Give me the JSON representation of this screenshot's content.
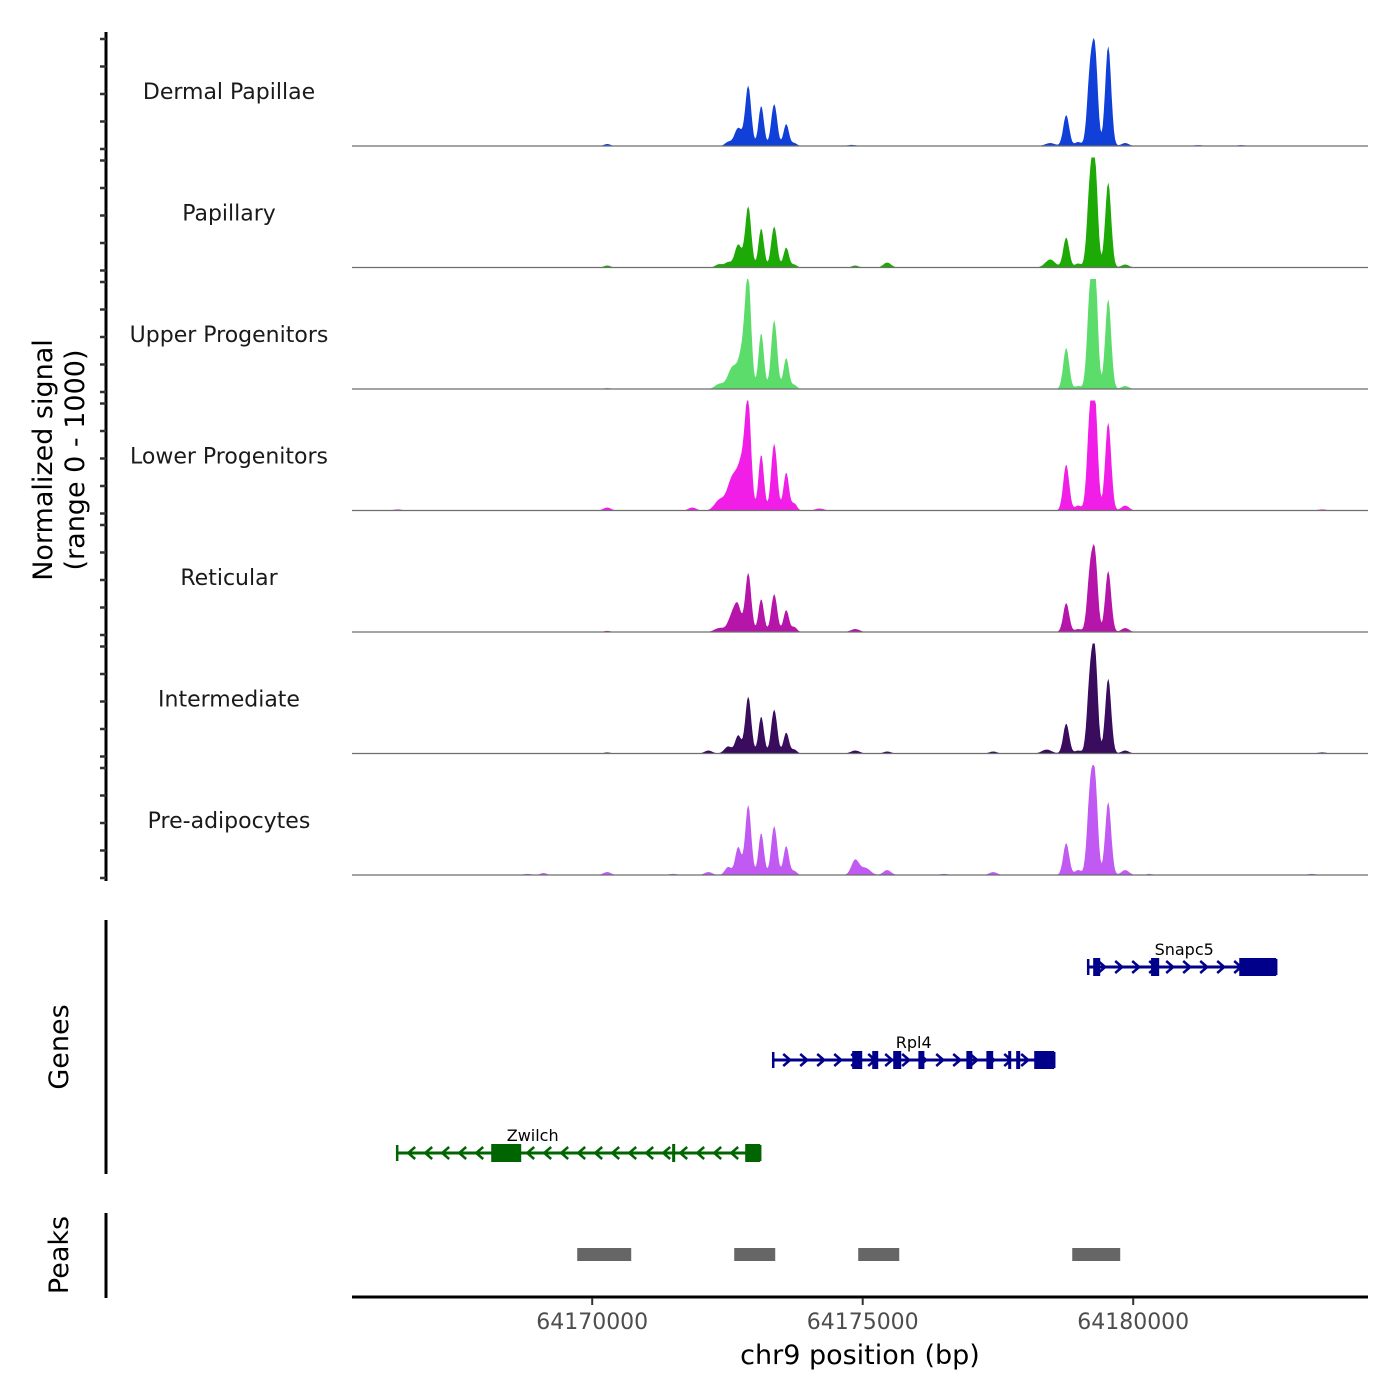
{
  "chart_data": {
    "type": "area",
    "title": "",
    "xlabel": "chr9 position (bp)",
    "ylabel": "Normalized signal\n(range 0 - 1000)",
    "ylabel_lines": [
      "Normalized signal",
      "(range 0 - 1000)"
    ],
    "xlim": [
      64165560,
      64184340
    ],
    "ylim": [
      0,
      1000
    ],
    "x_ticks": [
      64170000,
      64175000,
      64180000
    ],
    "x_tick_labels": [
      "64170000",
      "64175000",
      "64180000"
    ],
    "y_ticks_per_track": [
      0,
      250,
      500,
      750,
      1000
    ],
    "grid": false,
    "legend": "none",
    "tracks": [
      {
        "name": "Dermal Papillae",
        "color": "#1140D8",
        "peaks": [
          [
            64170277,
            18,
            60
          ],
          [
            64172514,
            36,
            60
          ],
          [
            64172699,
            164,
            70
          ],
          [
            64172884,
            545,
            55
          ],
          [
            64173124,
            364,
            50
          ],
          [
            64173364,
            382,
            55
          ],
          [
            64173586,
            200,
            50
          ],
          [
            64173734,
            27,
            50
          ],
          [
            64174800,
            10,
            80
          ],
          [
            64178466,
            27,
            90
          ],
          [
            64178762,
            282,
            55
          ],
          [
            64178983,
            36,
            60
          ],
          [
            64179205,
            664,
            55
          ],
          [
            64179298,
            764,
            50
          ],
          [
            64179538,
            909,
            55
          ],
          [
            64179852,
            27,
            70
          ],
          [
            64181200,
            8,
            80
          ],
          [
            64182000,
            8,
            80
          ]
        ]
      },
      {
        "name": "Papillary",
        "color": "#1EAA06",
        "peaks": [
          [
            64170277,
            18,
            60
          ],
          [
            64172350,
            30,
            70
          ],
          [
            64172514,
            45,
            60
          ],
          [
            64172699,
            209,
            65
          ],
          [
            64172884,
            555,
            55
          ],
          [
            64173124,
            355,
            50
          ],
          [
            64173364,
            373,
            55
          ],
          [
            64173586,
            182,
            50
          ],
          [
            64173734,
            27,
            50
          ],
          [
            64174861,
            18,
            60
          ],
          [
            64175453,
            45,
            70
          ],
          [
            64178466,
            73,
            90
          ],
          [
            64178762,
            273,
            55
          ],
          [
            64178983,
            36,
            60
          ],
          [
            64179205,
            755,
            55
          ],
          [
            64179298,
            827,
            50
          ],
          [
            64179538,
            773,
            55
          ],
          [
            64179852,
            27,
            70
          ]
        ]
      },
      {
        "name": "Upper Progenitors",
        "color": "#5CDC6A",
        "peaks": [
          [
            64170277,
            10,
            60
          ],
          [
            64172350,
            45,
            80
          ],
          [
            64172599,
            200,
            90
          ],
          [
            64172780,
            318,
            70
          ],
          [
            64172884,
            955,
            55
          ],
          [
            64173124,
            509,
            50
          ],
          [
            64173364,
            627,
            55
          ],
          [
            64173586,
            282,
            50
          ],
          [
            64173734,
            36,
            50
          ],
          [
            64178762,
            373,
            55
          ],
          [
            64178983,
            27,
            60
          ],
          [
            64179205,
            864,
            55
          ],
          [
            64179298,
            955,
            50
          ],
          [
            64179538,
            818,
            55
          ],
          [
            64179852,
            27,
            70
          ]
        ]
      },
      {
        "name": "Lower Progenitors",
        "color": "#F01EE6",
        "peaks": [
          [
            64166400,
            10,
            80
          ],
          [
            64170277,
            27,
            70
          ],
          [
            64171850,
            27,
            70
          ],
          [
            64172350,
            91,
            90
          ],
          [
            64172599,
            300,
            100
          ],
          [
            64172780,
            391,
            80
          ],
          [
            64172884,
            864,
            55
          ],
          [
            64173124,
            509,
            50
          ],
          [
            64173364,
            609,
            55
          ],
          [
            64173586,
            345,
            50
          ],
          [
            64173734,
            64,
            50
          ],
          [
            64174200,
            18,
            80
          ],
          [
            64178762,
            418,
            55
          ],
          [
            64178983,
            45,
            60
          ],
          [
            64179205,
            864,
            55
          ],
          [
            64179298,
            864,
            50
          ],
          [
            64179538,
            800,
            55
          ],
          [
            64179852,
            45,
            70
          ],
          [
            64183494,
            10,
            80
          ]
        ]
      },
      {
        "name": "Reticular",
        "color": "#B515A8",
        "peaks": [
          [
            64170277,
            10,
            60
          ],
          [
            64172350,
            36,
            90
          ],
          [
            64172599,
            164,
            80
          ],
          [
            64172699,
            182,
            60
          ],
          [
            64172884,
            536,
            55
          ],
          [
            64173124,
            300,
            50
          ],
          [
            64173364,
            345,
            55
          ],
          [
            64173586,
            200,
            50
          ],
          [
            64173734,
            45,
            50
          ],
          [
            64174861,
            27,
            80
          ],
          [
            64178762,
            264,
            55
          ],
          [
            64178983,
            27,
            60
          ],
          [
            64179205,
            545,
            55
          ],
          [
            64179298,
            618,
            50
          ],
          [
            64179538,
            555,
            55
          ],
          [
            64179852,
            36,
            70
          ]
        ]
      },
      {
        "name": "Intermediate",
        "color": "#3A0C5E",
        "peaks": [
          [
            64170277,
            10,
            60
          ],
          [
            64172150,
            27,
            70
          ],
          [
            64172514,
            64,
            70
          ],
          [
            64172699,
            164,
            55
          ],
          [
            64172884,
            518,
            55
          ],
          [
            64173124,
            336,
            50
          ],
          [
            64173364,
            400,
            55
          ],
          [
            64173586,
            191,
            50
          ],
          [
            64173734,
            36,
            50
          ],
          [
            64174861,
            27,
            80
          ],
          [
            64175453,
            18,
            70
          ],
          [
            64177412,
            18,
            70
          ],
          [
            64178400,
            36,
            90
          ],
          [
            64178762,
            273,
            55
          ],
          [
            64178983,
            27,
            60
          ],
          [
            64179205,
            691,
            55
          ],
          [
            64179298,
            809,
            50
          ],
          [
            64179538,
            682,
            55
          ],
          [
            64179852,
            27,
            70
          ],
          [
            64183494,
            10,
            80
          ]
        ]
      },
      {
        "name": "Pre-adipocytes",
        "color": "#C15AF3",
        "peaks": [
          [
            64168800,
            10,
            80
          ],
          [
            64169100,
            18,
            60
          ],
          [
            64170277,
            27,
            70
          ],
          [
            64171500,
            10,
            80
          ],
          [
            64172150,
            27,
            70
          ],
          [
            64172514,
            73,
            60
          ],
          [
            64172699,
            255,
            55
          ],
          [
            64172884,
            636,
            55
          ],
          [
            64173124,
            382,
            50
          ],
          [
            64173364,
            445,
            55
          ],
          [
            64173586,
            264,
            50
          ],
          [
            64173734,
            36,
            50
          ],
          [
            64174861,
            136,
            70
          ],
          [
            64175050,
            64,
            90
          ],
          [
            64175453,
            45,
            70
          ],
          [
            64176500,
            10,
            80
          ],
          [
            64177412,
            27,
            70
          ],
          [
            64178762,
            291,
            55
          ],
          [
            64178983,
            45,
            60
          ],
          [
            64179205,
            745,
            55
          ],
          [
            64179298,
            764,
            50
          ],
          [
            64179538,
            664,
            55
          ],
          [
            64179852,
            45,
            70
          ],
          [
            64180300,
            10,
            60
          ],
          [
            64183300,
            10,
            80
          ]
        ]
      }
    ],
    "genes_track": {
      "label": "Genes",
      "genes": [
        {
          "name": "Snapc5",
          "strand": "+",
          "color": "#00008B",
          "start": 64179168,
          "end": 64182643,
          "exons": [
            [
              64179260,
              64179390
            ],
            [
              64180330,
              64180480
            ],
            [
              64181960,
              64182643
            ]
          ]
        },
        {
          "name": "Rpl4",
          "strand": "+",
          "color": "#00008B",
          "start": 64173346,
          "end": 64178540,
          "exons": [
            [
              64174806,
              64174991
            ],
            [
              64175176,
              64175287
            ],
            [
              64175564,
              64175712
            ],
            [
              64176029,
              64176140
            ],
            [
              64176916,
              64177027
            ],
            [
              64177286,
              64177412
            ],
            [
              64177689,
              64177745
            ],
            [
              64177837,
              64177911
            ],
            [
              64178170,
              64178540
            ]
          ]
        },
        {
          "name": "Zwilch",
          "strand": "-",
          "color": "#006400",
          "start": 64166395,
          "end": 64173105,
          "exons": [
            [
              64168133,
              64168688
            ],
            [
              64171478,
              64171515
            ],
            [
              64172828,
              64173105
            ]
          ]
        }
      ]
    },
    "peaks_track": {
      "label": "Peaks",
      "color": "#666666",
      "regions": [
        [
          64169723,
          64170721
        ],
        [
          64172625,
          64173383
        ],
        [
          64174917,
          64175675
        ],
        [
          64178873,
          64179760
        ]
      ]
    }
  }
}
